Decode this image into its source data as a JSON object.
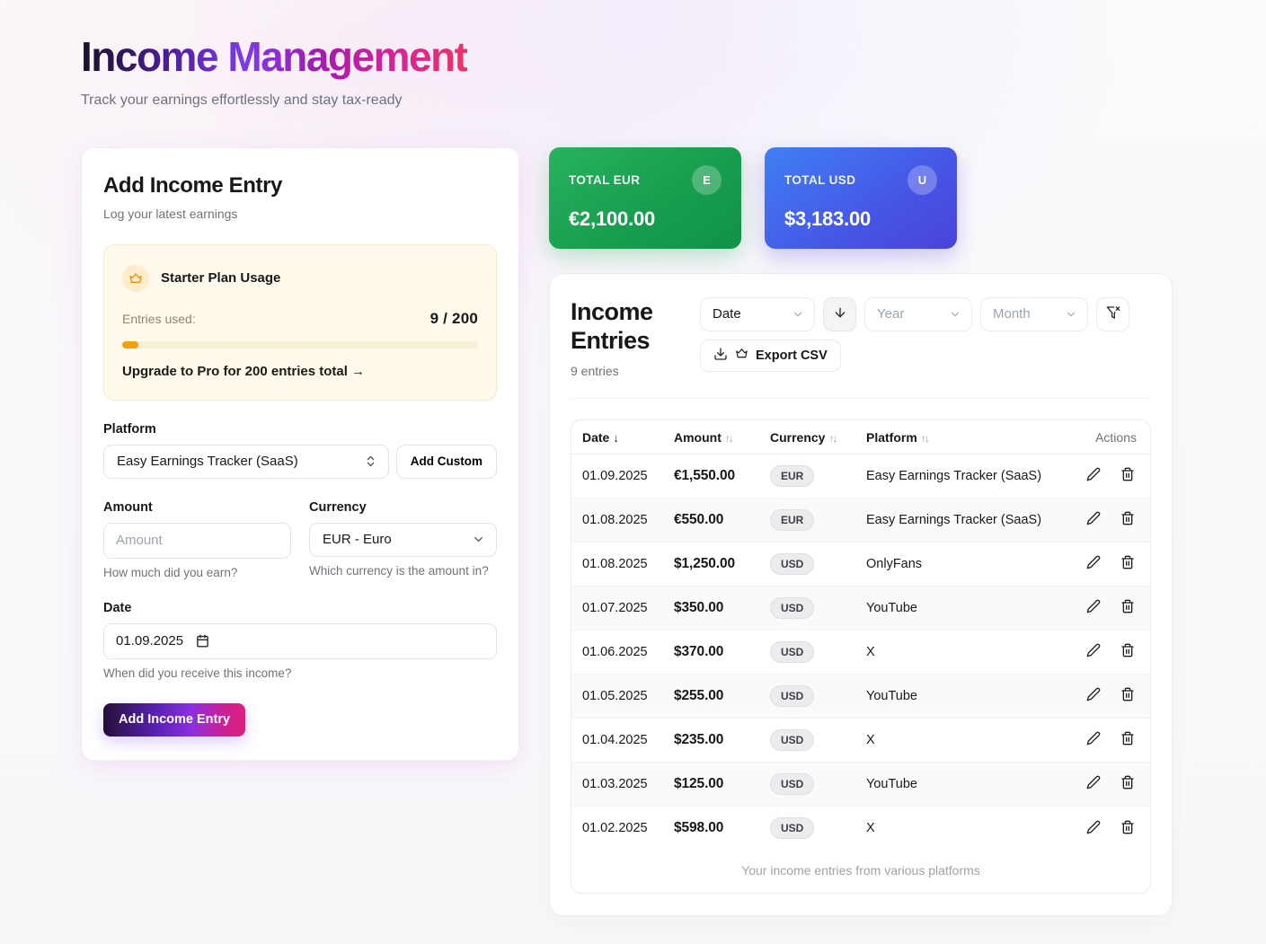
{
  "header": {
    "title": "Income Management",
    "subtitle": "Track your earnings effortlessly and stay tax-ready"
  },
  "colors": {
    "title_gradient": [
      "#161226",
      "#7c3aed",
      "#a21caf",
      "#ec3366"
    ],
    "accent_orange": "#f59e0b",
    "total_eur_gradient": [
      "#27b260",
      "#10924a"
    ],
    "total_usd_gradient": [
      "#3f80f4",
      "#4a42dc"
    ],
    "submit_gradient": [
      "#241038",
      "#5b21b6",
      "#c7219c",
      "#e01f7a"
    ]
  },
  "form": {
    "title": "Add Income Entry",
    "subtitle": "Log your latest earnings",
    "plan": {
      "icon": "crown-icon",
      "title": "Starter Plan Usage",
      "entries_used_label": "Entries used:",
      "entries_used_value": "9 / 200",
      "progress_percent": 4.5,
      "upgrade_text": "Upgrade to Pro for 200 entries total →"
    },
    "platform": {
      "label": "Platform",
      "value": "Easy Earnings Tracker (SaaS)",
      "add_custom_label": "Add Custom"
    },
    "amount": {
      "label": "Amount",
      "placeholder": "Amount",
      "value": "",
      "helper": "How much did you earn?"
    },
    "currency": {
      "label": "Currency",
      "value": "EUR - Euro",
      "helper": "Which currency is the amount in?"
    },
    "date": {
      "label": "Date",
      "value": "01.09.2025",
      "helper": "When did you receive this income?"
    },
    "submit_label": "Add Income Entry"
  },
  "totals": [
    {
      "label": "TOTAL EUR",
      "badge": "E",
      "value": "€2,100.00"
    },
    {
      "label": "TOTAL USD",
      "badge": "U",
      "value": "$3,183.00"
    }
  ],
  "entries_panel": {
    "title": "Income Entries",
    "count": "9 entries",
    "filters": {
      "sort_by_value": "Date",
      "sort_direction_icon": "arrow-down-icon",
      "year_placeholder": "Year",
      "month_placeholder": "Month",
      "clear_filter_icon": "filter-x-icon"
    },
    "export_label": "Export CSV",
    "table": {
      "headers": {
        "date": "Date",
        "amount": "Amount",
        "currency": "Currency",
        "platform": "Platform",
        "actions": "Actions"
      },
      "sort_desc_glyph": "↓",
      "sort_both_glyph": "↑↓",
      "rows": [
        {
          "date": "01.09.2025",
          "amount": "€1,550.00",
          "currency": "EUR",
          "platform": "Easy Earnings Tracker (SaaS)"
        },
        {
          "date": "01.08.2025",
          "amount": "€550.00",
          "currency": "EUR",
          "platform": "Easy Earnings Tracker (SaaS)"
        },
        {
          "date": "01.08.2025",
          "amount": "$1,250.00",
          "currency": "USD",
          "platform": "OnlyFans"
        },
        {
          "date": "01.07.2025",
          "amount": "$350.00",
          "currency": "USD",
          "platform": "YouTube"
        },
        {
          "date": "01.06.2025",
          "amount": "$370.00",
          "currency": "USD",
          "platform": "X"
        },
        {
          "date": "01.05.2025",
          "amount": "$255.00",
          "currency": "USD",
          "platform": "YouTube"
        },
        {
          "date": "01.04.2025",
          "amount": "$235.00",
          "currency": "USD",
          "platform": "X"
        },
        {
          "date": "01.03.2025",
          "amount": "$125.00",
          "currency": "USD",
          "platform": "YouTube"
        },
        {
          "date": "01.02.2025",
          "amount": "$598.00",
          "currency": "USD",
          "platform": "X"
        }
      ],
      "caption": "Your income entries from various platforms"
    }
  }
}
